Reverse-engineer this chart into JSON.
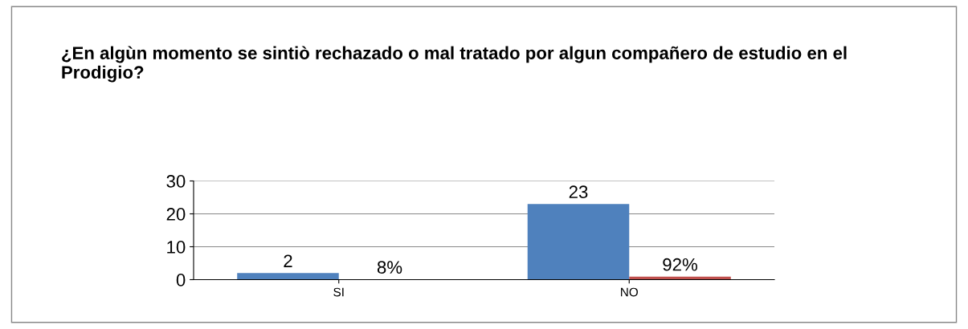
{
  "chart_data": {
    "type": "bar",
    "title": "¿En algùn momento se sintiò rechazado o mal tratado por algun compañero de estudio en el Prodigio?",
    "categories": [
      "SI",
      "NO"
    ],
    "series": [
      {
        "color": "#4f81bd",
        "values": [
          2,
          23
        ],
        "value_labels": [
          "2",
          "23"
        ]
      },
      {
        "color": "#c0504d",
        "values": [
          0.08,
          0.92
        ],
        "value_labels": [
          "8%",
          "92%"
        ]
      }
    ],
    "ylim": [
      0,
      30
    ],
    "yticks": [
      0,
      10,
      20,
      30
    ],
    "grid": "y"
  }
}
